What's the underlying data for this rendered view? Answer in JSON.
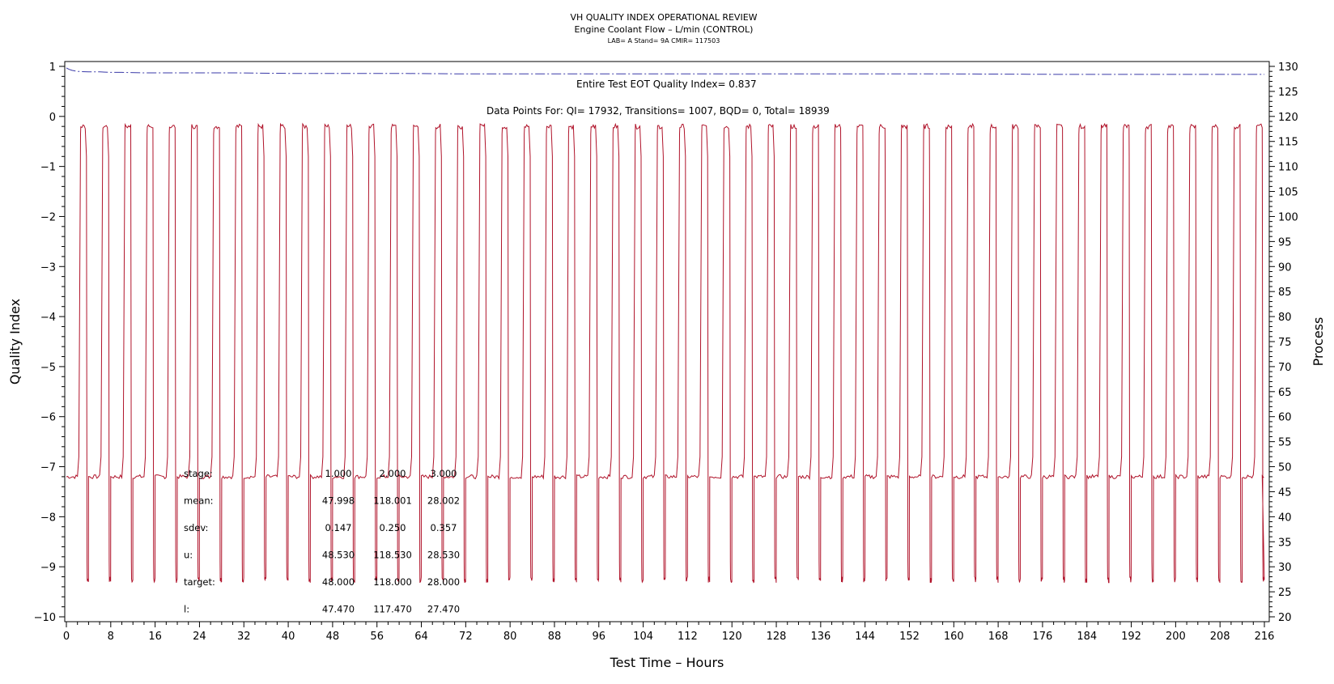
{
  "chart_data": {
    "type": "line",
    "title": "VH QUALITY INDEX OPERATIONAL REVIEW",
    "subtitle": "Engine Coolant Flow – L/min (CONTROL)",
    "subtitle2": "LAB= A Stand= 9A CMIR= 117503",
    "xlabel": "Test Time – Hours",
    "ylabel_left": "Quality Index",
    "ylabel_right": "Process",
    "xlim": [
      0,
      216
    ],
    "ylim_left": [
      -10,
      1
    ],
    "ylim_right": [
      20,
      130
    ],
    "x_ticks": [
      0,
      8,
      16,
      24,
      32,
      40,
      48,
      56,
      64,
      72,
      80,
      88,
      96,
      104,
      112,
      120,
      128,
      136,
      144,
      152,
      160,
      168,
      176,
      184,
      192,
      200,
      208,
      216
    ],
    "y_left_ticks": [
      1,
      0,
      -1,
      -2,
      -3,
      -4,
      -5,
      -6,
      -7,
      -8,
      -9,
      -10
    ],
    "y_right_ticks": [
      130,
      125,
      120,
      115,
      110,
      105,
      100,
      95,
      90,
      85,
      80,
      75,
      70,
      65,
      60,
      55,
      50,
      45,
      40,
      35,
      30,
      25,
      20
    ],
    "grid": false,
    "annotations": {
      "eot_qi": "Entire Test EOT Quality Index=   0.837",
      "data_points": "Data Points For: QI= 17932, Transitions=  1007, BQD=     0, Total= 18939"
    },
    "stats_table": {
      "row_labels": [
        "stage:",
        "mean:",
        "sdev:",
        "u:",
        "target:",
        "l:"
      ],
      "columns": [
        [
          "1.000",
          "47.998",
          "0.147",
          "48.530",
          "48.000",
          "47.470"
        ],
        [
          "2.000",
          "118.001",
          "0.250",
          "118.530",
          "118.000",
          "117.470"
        ],
        [
          "3.000",
          "28.002",
          "0.357",
          "28.530",
          "28.000",
          "27.470"
        ]
      ]
    },
    "series": [
      {
        "color": "#b0132a",
        "axis": "right",
        "stage_levels": {
          "high": 118,
          "mid": 48,
          "low": 28
        },
        "cycle_starts_h": [
          0,
          4,
          8,
          12,
          16,
          20,
          24,
          28,
          32,
          36,
          40,
          44,
          48,
          52,
          56,
          60,
          64,
          68,
          72,
          76,
          80,
          84,
          88,
          92,
          96,
          100,
          104,
          108,
          112,
          116,
          120,
          124,
          128,
          132,
          136,
          140,
          144,
          148,
          152,
          156,
          160,
          164,
          168,
          172,
          176,
          180,
          184,
          188,
          192,
          196,
          200,
          204,
          208,
          212
        ]
      },
      {
        "color": "#3a3aa8",
        "axis": "left",
        "style": "dash-dot",
        "x": [
          0,
          0.5,
          1,
          2,
          4,
          6,
          8,
          10,
          14,
          20,
          30,
          40,
          60,
          72,
          100,
          120,
          160,
          180,
          200,
          216
        ],
        "y": [
          0.97,
          0.94,
          0.92,
          0.9,
          0.89,
          0.89,
          0.88,
          0.88,
          0.87,
          0.87,
          0.87,
          0.86,
          0.86,
          0.85,
          0.85,
          0.85,
          0.85,
          0.84,
          0.84,
          0.84
        ]
      }
    ]
  }
}
